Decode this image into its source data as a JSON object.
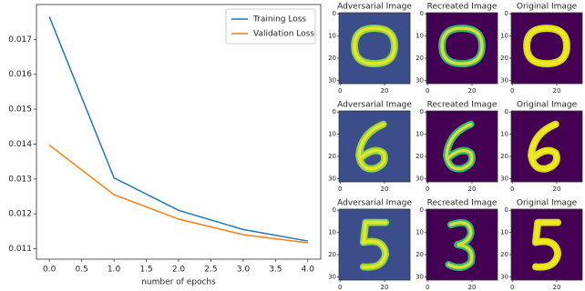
{
  "chart_data": {
    "type": "line",
    "xlabel": "number of epochs",
    "x": [
      0,
      1,
      2,
      3,
      4
    ],
    "series": [
      {
        "name": "Training Loss",
        "color": "#1f77b4",
        "values": [
          0.01765,
          0.01303,
          0.0121,
          0.01155,
          0.01122
        ]
      },
      {
        "name": "Validation Loss",
        "color": "#ff7f0e",
        "values": [
          0.01397,
          0.01255,
          0.01185,
          0.0114,
          0.01117
        ]
      }
    ],
    "xlim": [
      -0.2,
      4.2
    ],
    "ylim": [
      0.0107,
      0.018
    ],
    "xticks": [
      {
        "value": 0,
        "label": "0.0"
      },
      0.5,
      {
        "value": 1,
        "label": "1.0"
      },
      1.5,
      {
        "value": 2,
        "label": "2.0"
      },
      2.5,
      {
        "value": 3,
        "label": "3.0"
      },
      3.5,
      {
        "value": 4,
        "label": "4.0"
      }
    ],
    "yticks": [
      0.011,
      0.012,
      0.013,
      0.014,
      0.015,
      0.016,
      0.017
    ],
    "legend": "upper right"
  },
  "panels": [
    {
      "title": "Adversarial Image"
    },
    {
      "title": "Recreated Image"
    },
    {
      "title": "Original Image"
    },
    {
      "title": "Adversarial Image"
    },
    {
      "title": "Recreated Image"
    },
    {
      "title": "Original Image"
    },
    {
      "title": "Adversarial Image"
    },
    {
      "title": "Recreated Image"
    },
    {
      "title": "Original Image"
    }
  ],
  "panel_axes": {
    "xlim": [
      -0.5,
      31.5
    ],
    "ylim": [
      -0.5,
      31.5
    ],
    "xticks": [
      0,
      20
    ],
    "yticks": [
      0,
      10,
      20,
      30
    ]
  }
}
